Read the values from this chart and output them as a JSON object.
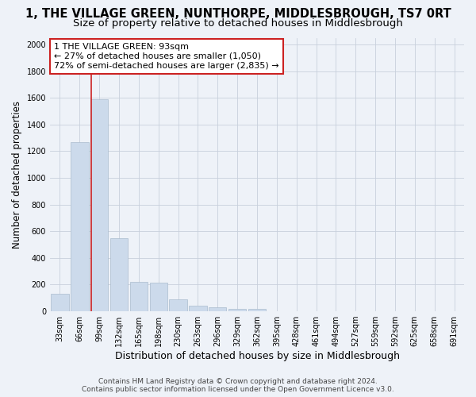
{
  "title": "1, THE VILLAGE GREEN, NUNTHORPE, MIDDLESBROUGH, TS7 0RT",
  "subtitle": "Size of property relative to detached houses in Middlesbrough",
  "xlabel": "Distribution of detached houses by size in Middlesbrough",
  "ylabel": "Number of detached properties",
  "footer_line1": "Contains HM Land Registry data © Crown copyright and database right 2024.",
  "footer_line2": "Contains public sector information licensed under the Open Government Licence v3.0.",
  "categories": [
    "33sqm",
    "66sqm",
    "99sqm",
    "132sqm",
    "165sqm",
    "198sqm",
    "230sqm",
    "263sqm",
    "296sqm",
    "329sqm",
    "362sqm",
    "395sqm",
    "428sqm",
    "461sqm",
    "494sqm",
    "527sqm",
    "559sqm",
    "592sqm",
    "625sqm",
    "658sqm",
    "691sqm"
  ],
  "values": [
    130,
    1270,
    1590,
    550,
    220,
    215,
    90,
    45,
    30,
    20,
    20,
    0,
    0,
    0,
    0,
    0,
    0,
    0,
    0,
    0,
    0
  ],
  "bar_color": "#ccdaeb",
  "bar_edge_color": "#aabcce",
  "grid_color": "#c8d0dc",
  "property_line_color": "#cc2222",
  "annotation_text": "1 THE VILLAGE GREEN: 93sqm\n← 27% of detached houses are smaller (1,050)\n72% of semi-detached houses are larger (2,835) →",
  "annotation_box_facecolor": "#ffffff",
  "annotation_box_edgecolor": "#cc2222",
  "ylim": [
    0,
    2050
  ],
  "yticks": [
    0,
    200,
    400,
    600,
    800,
    1000,
    1200,
    1400,
    1600,
    1800,
    2000
  ],
  "background_color": "#eef2f8",
  "title_fontsize": 10.5,
  "subtitle_fontsize": 9.5,
  "xlabel_fontsize": 9,
  "ylabel_fontsize": 8.5,
  "tick_fontsize": 7,
  "annotation_fontsize": 8,
  "footer_fontsize": 6.5
}
